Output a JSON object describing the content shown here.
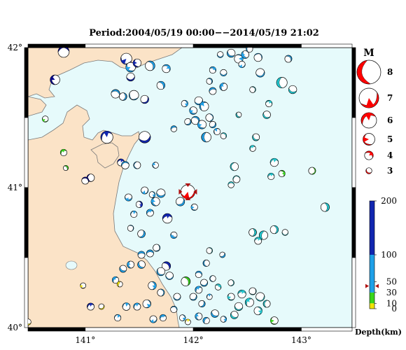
{
  "title": "Period:2004/05/19 00:00−−2014/05/19 21:02",
  "lon_axis": {
    "ticks": [
      {
        "value": 141,
        "label": "141°"
      },
      {
        "value": 142,
        "label": "142°"
      },
      {
        "value": 143,
        "label": "143°"
      }
    ]
  },
  "lat_axis": {
    "ticks": [
      {
        "value": 42,
        "label": "42°"
      },
      {
        "value": 41,
        "label": "41°"
      },
      {
        "value": 40,
        "label": "40°"
      }
    ]
  },
  "extent": {
    "lon_min": 140.47,
    "lon_max": 143.47,
    "lat_min": 40.0,
    "lat_max": 42.0
  },
  "colors": {
    "sea": "#e6fafb",
    "land": "#fbe3c7",
    "coast": "#7a7a7a",
    "depth_shallow": "#f2e400",
    "depth_10_30": "#39d61c",
    "depth_mid": "#1fa0e8",
    "depth_deep": "#1126b0",
    "deep_navy": "#0b0b8c",
    "cyan": "#21c7cf",
    "highlight": "#ff0000",
    "marker": "#b01010"
  },
  "magnitude_legend": {
    "title": "M",
    "items": [
      {
        "label": "8",
        "magnitude": 8
      },
      {
        "label": "7",
        "magnitude": 7
      },
      {
        "label": "6",
        "magnitude": 6
      },
      {
        "label": "5",
        "magnitude": 5
      },
      {
        "label": "4",
        "magnitude": 4
      },
      {
        "label": "3",
        "magnitude": 3
      }
    ]
  },
  "depth_legend": {
    "title": "Depth(km)",
    "max": 200,
    "tick_labels": [
      {
        "value": 200,
        "label": "200"
      },
      {
        "value": 100,
        "label": "100"
      },
      {
        "value": 50,
        "label": "50"
      },
      {
        "value": 30,
        "label": "30"
      },
      {
        "value": 10,
        "label": "10"
      },
      {
        "value": 0,
        "label": "0"
      }
    ],
    "latest_depth_marker": 42
  },
  "highlight_event": {
    "lon": 141.95,
    "lat": 40.97,
    "magnitude": 6,
    "color": "#ff0000"
  },
  "events": [
    {
      "lon": 140.8,
      "lat": 41.97,
      "m": 4.6,
      "c": "#0b0b8c"
    },
    {
      "lon": 140.72,
      "lat": 41.77,
      "m": 4.3,
      "c": "#0b0b8c"
    },
    {
      "lon": 140.63,
      "lat": 41.49,
      "m": 3.6,
      "c": "#39d61c"
    },
    {
      "lon": 140.8,
      "lat": 41.25,
      "m": 3.7,
      "c": "#39d61c"
    },
    {
      "lon": 140.82,
      "lat": 41.14,
      "m": 3.4,
      "c": "#39d61c"
    },
    {
      "lon": 141.05,
      "lat": 41.07,
      "m": 3.9,
      "c": "#0b0b8c"
    },
    {
      "lon": 141.0,
      "lat": 41.05,
      "m": 3.8,
      "c": "#0b0b8c"
    },
    {
      "lon": 141.38,
      "lat": 41.92,
      "m": 4.6,
      "c": "#1126b0"
    },
    {
      "lon": 141.42,
      "lat": 41.86,
      "m": 4.3,
      "c": "#1fa0e8"
    },
    {
      "lon": 141.48,
      "lat": 41.89,
      "m": 4.0,
      "c": "#1126b0"
    },
    {
      "lon": 141.6,
      "lat": 41.87,
      "m": 4.3,
      "c": "#1fa0e8"
    },
    {
      "lon": 141.42,
      "lat": 41.79,
      "m": 4.0,
      "c": "#1126b0"
    },
    {
      "lon": 141.28,
      "lat": 41.67,
      "m": 4.1,
      "c": "#1fa0e8"
    },
    {
      "lon": 141.35,
      "lat": 41.65,
      "m": 3.9,
      "c": "#1fa0e8"
    },
    {
      "lon": 141.45,
      "lat": 41.66,
      "m": 4.3,
      "c": "#1fa0e8"
    },
    {
      "lon": 141.55,
      "lat": 41.63,
      "m": 4.0,
      "c": "#1126b0"
    },
    {
      "lon": 141.75,
      "lat": 41.85,
      "m": 4.0,
      "c": "#1fa0e8"
    },
    {
      "lon": 141.7,
      "lat": 41.73,
      "m": 4.0,
      "c": "#1fa0e8"
    },
    {
      "lon": 141.82,
      "lat": 41.42,
      "m": 3.6,
      "c": "#1fa0e8"
    },
    {
      "lon": 141.2,
      "lat": 41.36,
      "m": 4.8,
      "c": "#1126b0"
    },
    {
      "lon": 141.55,
      "lat": 41.36,
      "m": 4.7,
      "c": "#1126b0"
    },
    {
      "lon": 141.33,
      "lat": 41.18,
      "m": 3.8,
      "c": "#1126b0"
    },
    {
      "lon": 141.37,
      "lat": 41.16,
      "m": 3.9,
      "c": "#1fa0e8"
    },
    {
      "lon": 141.48,
      "lat": 41.16,
      "m": 3.8,
      "c": "#1fa0e8"
    },
    {
      "lon": 141.65,
      "lat": 41.16,
      "m": 3.6,
      "c": "#1fa0e8"
    },
    {
      "lon": 141.55,
      "lat": 40.98,
      "m": 3.8,
      "c": "#1fa0e8"
    },
    {
      "lon": 141.62,
      "lat": 40.95,
      "m": 3.6,
      "c": "#1fa0e8"
    },
    {
      "lon": 141.7,
      "lat": 40.96,
      "m": 4.1,
      "c": "#1fa0e8"
    },
    {
      "lon": 141.65,
      "lat": 40.9,
      "m": 4.1,
      "c": "#1fa0e8"
    },
    {
      "lon": 141.5,
      "lat": 40.88,
      "m": 3.7,
      "c": "#1126b0"
    },
    {
      "lon": 141.4,
      "lat": 40.93,
      "m": 3.8,
      "c": "#1fa0e8"
    },
    {
      "lon": 141.6,
      "lat": 40.82,
      "m": 3.8,
      "c": "#1fa0e8"
    },
    {
      "lon": 141.45,
      "lat": 40.81,
      "m": 3.7,
      "c": "#1fa0e8"
    },
    {
      "lon": 141.76,
      "lat": 40.78,
      "m": 4.3,
      "c": "#1126b0"
    },
    {
      "lon": 141.88,
      "lat": 40.9,
      "m": 4.1,
      "c": "#1fa0e8"
    },
    {
      "lon": 142.01,
      "lat": 40.86,
      "m": 3.7,
      "c": "#1fa0e8"
    },
    {
      "lon": 141.42,
      "lat": 40.71,
      "m": 3.6,
      "c": "#1fa0e8"
    },
    {
      "lon": 141.52,
      "lat": 40.67,
      "m": 3.9,
      "c": "#1fa0e8"
    },
    {
      "lon": 141.82,
      "lat": 40.66,
      "m": 3.7,
      "c": "#1fa0e8"
    },
    {
      "lon": 141.66,
      "lat": 40.57,
      "m": 3.8,
      "c": "#1fa0e8"
    },
    {
      "lon": 141.6,
      "lat": 40.53,
      "m": 3.8,
      "c": "#1fa0e8"
    },
    {
      "lon": 141.52,
      "lat": 40.52,
      "m": 3.8,
      "c": "#1fa0e8"
    },
    {
      "lon": 141.42,
      "lat": 40.45,
      "m": 3.8,
      "c": "#1fa0e8"
    },
    {
      "lon": 141.52,
      "lat": 40.45,
      "m": 3.9,
      "c": "#1fa0e8"
    },
    {
      "lon": 141.75,
      "lat": 40.44,
      "m": 4.1,
      "c": "#1126b0"
    },
    {
      "lon": 141.7,
      "lat": 40.4,
      "m": 4.0,
      "c": "#1fa0e8"
    },
    {
      "lon": 141.78,
      "lat": 40.37,
      "m": 3.9,
      "c": "#1fa0e8"
    },
    {
      "lon": 141.62,
      "lat": 40.3,
      "m": 4.0,
      "c": "#1fa0e8"
    },
    {
      "lon": 141.7,
      "lat": 40.25,
      "m": 3.8,
      "c": "#1fa0e8"
    },
    {
      "lon": 141.28,
      "lat": 40.34,
      "m": 3.7,
      "c": "#1fa0e8"
    },
    {
      "lon": 141.35,
      "lat": 40.42,
      "m": 3.8,
      "c": "#1fa0e8"
    },
    {
      "lon": 141.32,
      "lat": 40.31,
      "m": 3.5,
      "c": "#f2e400"
    },
    {
      "lon": 141.05,
      "lat": 40.15,
      "m": 3.8,
      "c": "#1126b0"
    },
    {
      "lon": 141.15,
      "lat": 40.15,
      "m": 3.5,
      "c": "#f2e400"
    },
    {
      "lon": 140.98,
      "lat": 40.3,
      "m": 3.5,
      "c": "#f2e400"
    },
    {
      "lon": 141.3,
      "lat": 40.07,
      "m": 3.7,
      "c": "#1fa0e8"
    },
    {
      "lon": 141.38,
      "lat": 40.15,
      "m": 3.9,
      "c": "#1fa0e8"
    },
    {
      "lon": 141.48,
      "lat": 40.15,
      "m": 3.8,
      "c": "#1fa0e8"
    },
    {
      "lon": 141.57,
      "lat": 40.17,
      "m": 4.0,
      "c": "#1fa0e8"
    },
    {
      "lon": 141.63,
      "lat": 40.06,
      "m": 3.8,
      "c": "#1fa0e8"
    },
    {
      "lon": 141.72,
      "lat": 40.07,
      "m": 3.7,
      "c": "#1fa0e8"
    },
    {
      "lon": 141.82,
      "lat": 40.13,
      "m": 3.7,
      "c": "#1fa0e8"
    },
    {
      "lon": 141.9,
      "lat": 40.07,
      "m": 3.6,
      "c": "#1fa0e8"
    },
    {
      "lon": 141.95,
      "lat": 40.04,
      "m": 3.5,
      "c": "#f2e400"
    },
    {
      "lon": 140.47,
      "lat": 40.04,
      "m": 3.6,
      "c": "#f2e400"
    },
    {
      "lon": 141.85,
      "lat": 40.22,
      "m": 3.8,
      "c": "#1fa0e8"
    },
    {
      "lon": 141.93,
      "lat": 40.33,
      "m": 4.2,
      "c": "#39d61c"
    },
    {
      "lon": 142.05,
      "lat": 40.38,
      "m": 3.7,
      "c": "#1fa0e8"
    },
    {
      "lon": 142.1,
      "lat": 40.32,
      "m": 3.8,
      "c": "#1fa0e8"
    },
    {
      "lon": 142.05,
      "lat": 40.27,
      "m": 3.8,
      "c": "#1fa0e8"
    },
    {
      "lon": 142.18,
      "lat": 40.35,
      "m": 3.6,
      "c": "#1fa0e8"
    },
    {
      "lon": 142.0,
      "lat": 40.22,
      "m": 3.8,
      "c": "#1fa0e8"
    },
    {
      "lon": 142.08,
      "lat": 40.17,
      "m": 3.7,
      "c": "#1fa0e8"
    },
    {
      "lon": 142.15,
      "lat": 40.22,
      "m": 3.5,
      "c": "#1fa0e8"
    },
    {
      "lon": 142.2,
      "lat": 40.1,
      "m": 3.9,
      "c": "#1fa0e8"
    },
    {
      "lon": 142.05,
      "lat": 40.08,
      "m": 3.8,
      "c": "#1fa0e8"
    },
    {
      "lon": 142.12,
      "lat": 40.05,
      "m": 3.7,
      "c": "#1fa0e8"
    },
    {
      "lon": 142.28,
      "lat": 40.06,
      "m": 3.6,
      "c": "#1fa0e8"
    },
    {
      "lon": 142.27,
      "lat": 40.52,
      "m": 3.5,
      "c": "#1fa0e8"
    },
    {
      "lon": 142.12,
      "lat": 40.46,
      "m": 3.7,
      "c": "#1fa0e8"
    },
    {
      "lon": 142.35,
      "lat": 40.22,
      "m": 3.8,
      "c": "#21c7cf"
    },
    {
      "lon": 142.42,
      "lat": 40.15,
      "m": 4.0,
      "c": "#21c7cf"
    },
    {
      "lon": 142.52,
      "lat": 40.18,
      "m": 4.1,
      "c": "#21c7cf"
    },
    {
      "lon": 142.45,
      "lat": 40.24,
      "m": 4.0,
      "c": "#21c7cf"
    },
    {
      "lon": 142.55,
      "lat": 40.26,
      "m": 3.8,
      "c": "#21c7cf"
    },
    {
      "lon": 142.62,
      "lat": 40.22,
      "m": 4.1,
      "c": "#21c7cf"
    },
    {
      "lon": 142.38,
      "lat": 40.09,
      "m": 3.9,
      "c": "#21c7cf"
    },
    {
      "lon": 142.6,
      "lat": 40.12,
      "m": 4.0,
      "c": "#21c7cf"
    },
    {
      "lon": 142.68,
      "lat": 40.17,
      "m": 3.8,
      "c": "#21c7cf"
    },
    {
      "lon": 142.75,
      "lat": 40.05,
      "m": 3.9,
      "c": "#39d61c"
    },
    {
      "lon": 142.35,
      "lat": 40.32,
      "m": 3.6,
      "c": "#21c7cf"
    },
    {
      "lon": 142.23,
      "lat": 40.29,
      "m": 3.6,
      "c": "#21c7cf"
    },
    {
      "lon": 142.05,
      "lat": 41.62,
      "m": 4.0,
      "c": "#1fa0e8"
    },
    {
      "lon": 142.1,
      "lat": 41.58,
      "m": 4.2,
      "c": "#1fa0e8"
    },
    {
      "lon": 142.0,
      "lat": 41.55,
      "m": 3.9,
      "c": "#1fa0e8"
    },
    {
      "lon": 141.92,
      "lat": 41.6,
      "m": 3.7,
      "c": "#1fa0e8"
    },
    {
      "lon": 142.02,
      "lat": 41.48,
      "m": 4.0,
      "c": "#1fa0e8"
    },
    {
      "lon": 142.08,
      "lat": 41.45,
      "m": 4.1,
      "c": "#1fa0e8"
    },
    {
      "lon": 142.15,
      "lat": 41.5,
      "m": 3.9,
      "c": "#1fa0e8"
    },
    {
      "lon": 141.95,
      "lat": 41.47,
      "m": 3.7,
      "c": "#1fa0e8"
    },
    {
      "lon": 142.18,
      "lat": 41.45,
      "m": 3.7,
      "c": "#1fa0e8"
    },
    {
      "lon": 142.12,
      "lat": 41.36,
      "m": 4.3,
      "c": "#1fa0e8"
    },
    {
      "lon": 142.22,
      "lat": 41.4,
      "m": 3.7,
      "c": "#1fa0e8"
    },
    {
      "lon": 142.28,
      "lat": 41.37,
      "m": 3.6,
      "c": "#21c7cf"
    },
    {
      "lon": 142.18,
      "lat": 41.69,
      "m": 3.8,
      "c": "#1fa0e8"
    },
    {
      "lon": 142.28,
      "lat": 41.72,
      "m": 3.9,
      "c": "#1fa0e8"
    },
    {
      "lon": 142.18,
      "lat": 41.84,
      "m": 3.7,
      "c": "#1fa0e8"
    },
    {
      "lon": 142.15,
      "lat": 41.76,
      "m": 3.6,
      "c": "#1fa0e8"
    },
    {
      "lon": 142.28,
      "lat": 41.82,
      "m": 3.7,
      "c": "#1fa0e8"
    },
    {
      "lon": 142.25,
      "lat": 41.95,
      "m": 3.6,
      "c": "#1fa0e8"
    },
    {
      "lon": 142.35,
      "lat": 41.96,
      "m": 4.0,
      "c": "#1fa0e8"
    },
    {
      "lon": 142.42,
      "lat": 41.92,
      "m": 4.1,
      "c": "#1fa0e8"
    },
    {
      "lon": 142.48,
      "lat": 41.95,
      "m": 3.9,
      "c": "#1fa0e8"
    },
    {
      "lon": 142.45,
      "lat": 41.88,
      "m": 3.7,
      "c": "#1fa0e8"
    },
    {
      "lon": 142.6,
      "lat": 41.93,
      "m": 4.0,
      "c": "#1fa0e8"
    },
    {
      "lon": 142.52,
      "lat": 41.99,
      "m": 3.7,
      "c": "#1fa0e8"
    },
    {
      "lon": 142.88,
      "lat": 41.92,
      "m": 3.8,
      "c": "#1fa0e8"
    },
    {
      "lon": 142.62,
      "lat": 41.82,
      "m": 4.1,
      "c": "#1fa0e8"
    },
    {
      "lon": 142.55,
      "lat": 41.7,
      "m": 3.6,
      "c": "#21c7cf"
    },
    {
      "lon": 142.82,
      "lat": 41.75,
      "m": 4.5,
      "c": "#21c7cf"
    },
    {
      "lon": 142.92,
      "lat": 41.7,
      "m": 4.0,
      "c": "#21c7cf"
    },
    {
      "lon": 142.7,
      "lat": 41.6,
      "m": 3.7,
      "c": "#21c7cf"
    },
    {
      "lon": 142.68,
      "lat": 41.52,
      "m": 3.9,
      "c": "#21c7cf"
    },
    {
      "lon": 142.42,
      "lat": 41.52,
      "m": 3.5,
      "c": "#21c7cf"
    },
    {
      "lon": 142.58,
      "lat": 41.36,
      "m": 3.8,
      "c": "#21c7cf"
    },
    {
      "lon": 142.55,
      "lat": 41.28,
      "m": 3.6,
      "c": "#21c7cf"
    },
    {
      "lon": 142.75,
      "lat": 41.18,
      "m": 4.0,
      "c": "#21c7cf"
    },
    {
      "lon": 142.82,
      "lat": 41.1,
      "m": 3.7,
      "c": "#39d61c"
    },
    {
      "lon": 142.72,
      "lat": 41.08,
      "m": 3.7,
      "c": "#21c7cf"
    },
    {
      "lon": 142.38,
      "lat": 41.15,
      "m": 4.0,
      "c": "#21c7cf"
    },
    {
      "lon": 142.4,
      "lat": 41.06,
      "m": 3.8,
      "c": "#21c7cf"
    },
    {
      "lon": 142.35,
      "lat": 41.02,
      "m": 3.6,
      "c": "#21c7cf"
    },
    {
      "lon": 143.1,
      "lat": 41.12,
      "m": 3.8,
      "c": "#39d61c"
    },
    {
      "lon": 143.22,
      "lat": 40.86,
      "m": 4.1,
      "c": "#21c7cf"
    },
    {
      "lon": 142.55,
      "lat": 40.68,
      "m": 3.9,
      "c": "#21c7cf"
    },
    {
      "lon": 142.65,
      "lat": 40.66,
      "m": 4.1,
      "c": "#21c7cf"
    },
    {
      "lon": 142.75,
      "lat": 40.7,
      "m": 4.0,
      "c": "#21c7cf"
    },
    {
      "lon": 142.6,
      "lat": 40.62,
      "m": 3.8,
      "c": "#21c7cf"
    },
    {
      "lon": 142.85,
      "lat": 40.68,
      "m": 3.6,
      "c": "#21c7cf"
    },
    {
      "lon": 142.15,
      "lat": 40.55,
      "m": 3.6,
      "c": "#21c7cf"
    }
  ]
}
